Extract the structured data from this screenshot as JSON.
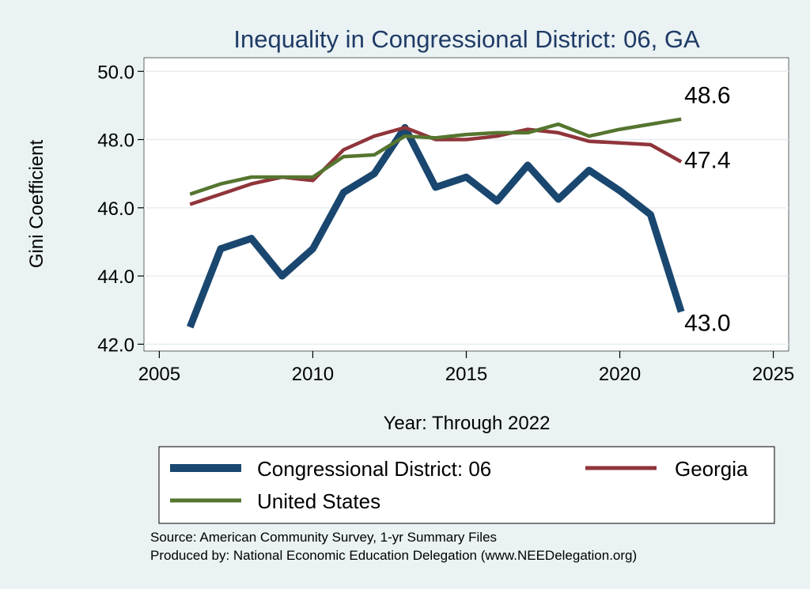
{
  "chart_data": {
    "type": "line",
    "title": "Inequality in Congressional District:  06, GA",
    "xlabel": "Year: Through 2022",
    "ylabel": "Gini Coefficient",
    "xlim": [
      2004.5,
      2025.5
    ],
    "ylim": [
      41.8,
      50.4
    ],
    "xticks": [
      2005,
      2010,
      2015,
      2020,
      2025
    ],
    "yticks": [
      42.0,
      44.0,
      46.0,
      48.0,
      50.0
    ],
    "ytick_labels": [
      "42.0",
      "44.0",
      "46.0",
      "48.0",
      "50.0"
    ],
    "grid": true,
    "series": [
      {
        "name": "Congressional District:  06",
        "color": "#1a476f",
        "x": [
          2006,
          2007,
          2008,
          2009,
          2010,
          2011,
          2012,
          2013,
          2014,
          2015,
          2016,
          2017,
          2018,
          2019,
          2020,
          2021,
          2022
        ],
        "values": [
          42.5,
          44.8,
          45.1,
          44.0,
          44.8,
          46.45,
          47.0,
          48.35,
          46.6,
          46.9,
          46.2,
          47.25,
          46.25,
          47.1,
          46.5,
          45.8,
          42.95
        ],
        "end_label": "43.0"
      },
      {
        "name": "Georgia",
        "color": "#90353b",
        "x": [
          2006,
          2007,
          2008,
          2009,
          2010,
          2011,
          2012,
          2013,
          2014,
          2015,
          2016,
          2017,
          2018,
          2019,
          2020,
          2021,
          2022
        ],
        "values": [
          46.1,
          46.4,
          46.7,
          46.9,
          46.8,
          47.7,
          48.1,
          48.35,
          48.0,
          48.0,
          48.1,
          48.3,
          48.2,
          47.95,
          47.9,
          47.85,
          47.35
        ],
        "end_label": "47.4"
      },
      {
        "name": "United States",
        "color": "#55752f",
        "x": [
          2006,
          2007,
          2008,
          2009,
          2010,
          2011,
          2012,
          2013,
          2014,
          2015,
          2016,
          2017,
          2018,
          2019,
          2020,
          2021,
          2022
        ],
        "values": [
          46.4,
          46.7,
          46.9,
          46.9,
          46.9,
          47.5,
          47.55,
          48.1,
          48.05,
          48.15,
          48.2,
          48.2,
          48.45,
          48.1,
          48.3,
          48.45,
          48.6
        ],
        "end_label": "48.6"
      }
    ],
    "legend": {
      "position": "bottom",
      "entries": [
        "Congressional District:  06",
        "Georgia",
        "United States"
      ]
    },
    "source_lines": [
      "Source: American Community Survey, 1-yr Summary Files",
      "Produced by: National Economic Education Delegation (www.NEEDelegation.org)"
    ],
    "colors": {
      "background": "#eaf2f3",
      "plot_background": "#ffffff",
      "grid": "#e7eef0",
      "title": "#1f3b66"
    }
  }
}
